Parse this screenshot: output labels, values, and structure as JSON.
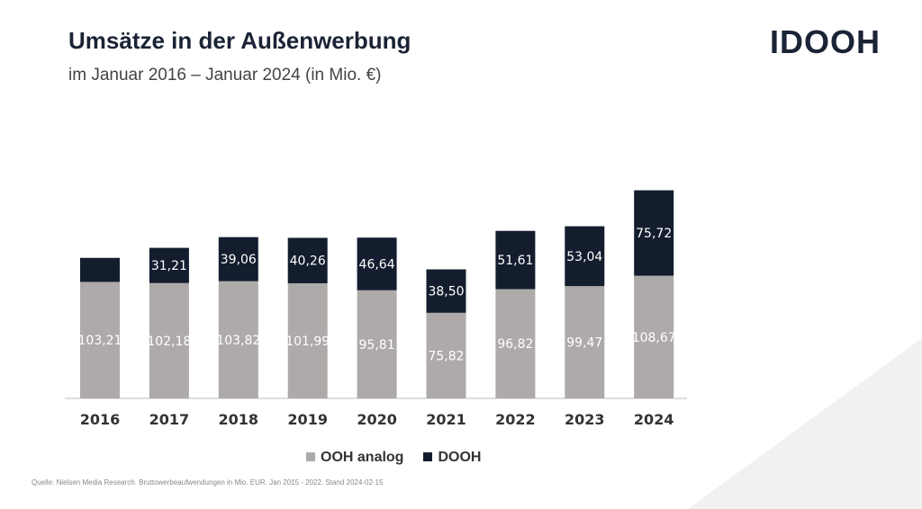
{
  "header": {
    "title": "Umsätze in der Außenwerbung",
    "subtitle": "im Januar 2016 – Januar 2024 (in Mio. €)",
    "logo": "IDOOH"
  },
  "source": "Quelle: Nielsen Media Research. Bruttowerbeaufwendungen in Mio. EUR. Jan 2015 - 2022. Stand 2024-02-15",
  "chart_data": {
    "type": "bar",
    "stacked": true,
    "title": "Umsätze in der Außenwerbung",
    "categories": [
      "2016",
      "2017",
      "2018",
      "2019",
      "2020",
      "2021",
      "2022",
      "2023",
      "2024"
    ],
    "series": [
      {
        "name": "OOH analog",
        "color": "#aeaaa9",
        "values": [
          103.21,
          102.18,
          103.82,
          101.99,
          95.81,
          75.82,
          96.82,
          99.47,
          108.67
        ],
        "labels": [
          "103,21",
          "102,18",
          "103,82",
          "101,99",
          "95,81",
          "75,82",
          "96,82",
          "99,47",
          "108,67"
        ]
      },
      {
        "name": "DOOH",
        "color": "#141d2e",
        "values": [
          21.3,
          31.21,
          39.06,
          40.26,
          46.64,
          38.5,
          51.61,
          53.04,
          75.72
        ],
        "labels": [
          null,
          "31,21",
          "39,06",
          "40,26",
          "46,64",
          "38,50",
          "51,61",
          "53,04",
          "75,72"
        ]
      }
    ],
    "legend": "bottom",
    "grid": false
  }
}
